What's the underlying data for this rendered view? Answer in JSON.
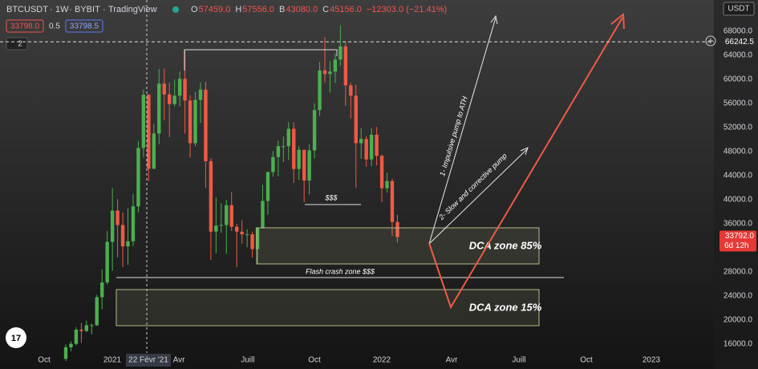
{
  "header": {
    "symbol": "BTCUSDT",
    "interval": "1W",
    "exchange": "BYBIT",
    "source": "TradingView",
    "ohlc": [
      {
        "key": "O",
        "value": "57459.0"
      },
      {
        "key": "H",
        "value": "57556.0"
      },
      {
        "key": "B",
        "value": "43080.0"
      },
      {
        "key": "C",
        "value": "45156.0"
      }
    ],
    "change": "−12303.0 (−21.41%)",
    "sell": "33798.0",
    "spread": "0.5",
    "buy": "33798.5",
    "indicator_count": "2",
    "currency": "USDT"
  },
  "ylim": [
    11867,
    73200
  ],
  "price_axis": [
    {
      "value": 68000,
      "label": "68000.0"
    },
    {
      "value": 64000,
      "label": "64000.0"
    },
    {
      "value": 60000,
      "label": "60000.0"
    },
    {
      "value": 56000,
      "label": "56000.0"
    },
    {
      "value": 52000,
      "label": "52000.0"
    },
    {
      "value": 48000,
      "label": "48000.0"
    },
    {
      "value": 44000,
      "label": "44000.0"
    },
    {
      "value": 40000,
      "label": "40000.0"
    },
    {
      "value": 36000,
      "label": "36000.0"
    },
    {
      "value": 28000,
      "label": "28000.0"
    },
    {
      "value": 24000,
      "label": "24000.0"
    },
    {
      "value": 20000,
      "label": "20000.0"
    },
    {
      "value": 16000,
      "label": "16000.0"
    }
  ],
  "ath_line": {
    "value": 66242.5,
    "label": "66242.5"
  },
  "last_price": {
    "value": 33792,
    "label": "33792.0",
    "countdown": "6d 12h"
  },
  "time_axis": [
    "Oct",
    "2021",
    "22 Févr '21",
    "Avr",
    "Juill",
    "Oct",
    "2022",
    "Avr",
    "Juill",
    "Oct",
    "2023"
  ],
  "candles": [
    [
      13550,
      15960,
      13200,
      15480
    ],
    [
      15480,
      16480,
      14800,
      16050
    ],
    [
      16050,
      18800,
      15800,
      18400
    ],
    [
      18400,
      19500,
      16200,
      18180
    ],
    [
      18180,
      19900,
      18000,
      19150
    ],
    [
      19150,
      19400,
      17600,
      19150
    ],
    [
      19150,
      24200,
      19000,
      23800
    ],
    [
      23800,
      28400,
      21800,
      26250
    ],
    [
      26250,
      34800,
      25900,
      33000
    ],
    [
      33000,
      41950,
      28200,
      38200
    ],
    [
      38200,
      40100,
      30400,
      35800
    ],
    [
      35800,
      37850,
      28800,
      32250
    ],
    [
      32250,
      38600,
      29200,
      33100
    ],
    [
      33100,
      40950,
      32300,
      38900
    ],
    [
      38900,
      49700,
      37900,
      48600
    ],
    [
      48600,
      58350,
      47000,
      57459
    ],
    [
      57459,
      57556,
      43080,
      45156
    ],
    [
      45156,
      52600,
      45100,
      51000
    ],
    [
      51000,
      61700,
      49200,
      59300
    ],
    [
      59300,
      61800,
      53200,
      57500
    ],
    [
      57500,
      59500,
      50400,
      55900
    ],
    [
      55900,
      60000,
      55500,
      57300
    ],
    [
      57300,
      61300,
      55500,
      60100
    ],
    [
      60100,
      64900,
      51000,
      56500
    ],
    [
      56500,
      57400,
      47000,
      49400
    ],
    [
      49400,
      57900,
      48900,
      56600
    ],
    [
      56600,
      59500,
      52800,
      58300
    ],
    [
      58300,
      59600,
      42000,
      46400
    ],
    [
      46400,
      46900,
      30000,
      34700
    ],
    [
      34700,
      40400,
      31100,
      35700
    ],
    [
      35700,
      39400,
      34500,
      35800
    ],
    [
      35800,
      40000,
      31000,
      39100
    ],
    [
      39100,
      41300,
      34800,
      35500
    ],
    [
      35500,
      36000,
      28800,
      34700
    ],
    [
      34700,
      36600,
      32700,
      34250
    ],
    [
      34250,
      35100,
      32100,
      34250
    ],
    [
      34250,
      34700,
      30400,
      31800
    ],
    [
      31800,
      35400,
      29300,
      35400
    ],
    [
      35400,
      42500,
      35200,
      39800
    ],
    [
      39800,
      44700,
      37500,
      44600
    ],
    [
      44600,
      48100,
      43800,
      47100
    ],
    [
      47100,
      49800,
      43900,
      48900
    ],
    [
      48900,
      50500,
      46300,
      48900
    ],
    [
      48900,
      52900,
      46600,
      51800
    ],
    [
      51800,
      52900,
      42800,
      45100
    ],
    [
      45100,
      48900,
      43300,
      48300
    ],
    [
      48300,
      48300,
      39600,
      43200
    ],
    [
      43200,
      49200,
      40900,
      48200
    ],
    [
      48200,
      56000,
      46900,
      54900
    ],
    [
      54900,
      62900,
      53900,
      61500
    ],
    [
      61500,
      67000,
      59500,
      60900
    ],
    [
      60900,
      63000,
      57800,
      61300
    ],
    [
      61300,
      64300,
      59400,
      63300
    ],
    [
      63300,
      69000,
      62300,
      65500
    ],
    [
      65500,
      66300,
      55600,
      59000
    ],
    [
      59000,
      59400,
      53500,
      57300
    ],
    [
      57300,
      59100,
      42000,
      49400
    ],
    [
      49400,
      51900,
      46800,
      50100
    ],
    [
      50100,
      50600,
      45500,
      46700
    ],
    [
      46700,
      51900,
      45600,
      50800
    ],
    [
      50800,
      52100,
      45700,
      47300
    ],
    [
      47300,
      47500,
      39600,
      41900
    ],
    [
      41900,
      44500,
      41200,
      43100
    ],
    [
      43100,
      43500,
      34000,
      36300
    ],
    [
      36300,
      37500,
      32900,
      33792
    ]
  ],
  "annotations": {
    "money": "$$$",
    "dca_85": "DCA zone 85%",
    "flash_crash": "Flash crash zone $$$",
    "dca_15": "DCA zone 15%",
    "pump_1": "1- Impulsive pump to ATH",
    "pump_2": "2- Slow and corrective pump"
  }
}
